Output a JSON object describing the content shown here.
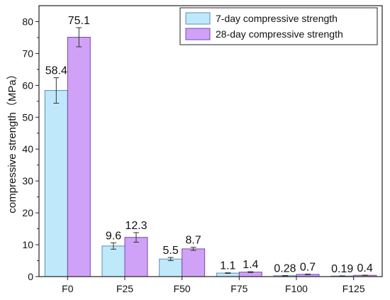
{
  "chart_data": {
    "type": "bar",
    "categories": [
      "F0",
      "F25",
      "F50",
      "F75",
      "F100",
      "F125"
    ],
    "series": [
      {
        "name": "7-day compressive strength",
        "values": [
          58.4,
          9.6,
          5.5,
          1.1,
          0.28,
          0.19
        ],
        "labels": [
          "58.4",
          "9.6",
          "5.5",
          "1.1",
          "0.28",
          "0.19"
        ],
        "error": [
          4.0,
          1.0,
          0.5,
          0.1,
          0.05,
          0.05
        ],
        "color": "#bfe9fb",
        "stroke": "#5a8fb5"
      },
      {
        "name": "28-day compressive strength",
        "values": [
          75.1,
          12.3,
          8.7,
          1.4,
          0.7,
          0.4
        ],
        "labels": [
          "75.1",
          "12.3",
          "8.7",
          "1.4",
          "0.7",
          "0.4"
        ],
        "error": [
          3.0,
          1.5,
          0.5,
          0.15,
          0.1,
          0.05
        ],
        "color": "#cfa2f7",
        "stroke": "#7a4aa8"
      }
    ],
    "title": "",
    "xlabel": "",
    "ylabel": "compressive strength（MPa）",
    "ylim": [
      0,
      85
    ],
    "yticks": [
      0,
      10,
      20,
      30,
      40,
      50,
      60,
      70,
      80
    ],
    "grid": false,
    "legend_position": "top-right"
  }
}
